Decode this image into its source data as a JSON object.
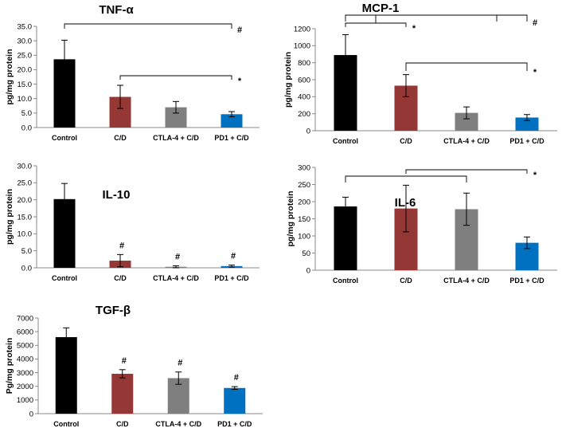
{
  "chart_data": [
    {
      "type": "bar",
      "title": "TNF-α",
      "ylabel": "pg/mg protein",
      "ylim": [
        0,
        35
      ],
      "yticks": [
        "0.0",
        "5.0",
        "10.0",
        "15.0",
        "20.0",
        "25.0",
        "30.0",
        "35.0"
      ],
      "categories": [
        "Control",
        "C/D",
        "CTLA-4 + C/D",
        "PD1 + C/D"
      ],
      "values": [
        23.6,
        10.6,
        7.0,
        4.6
      ],
      "errors": [
        6.6,
        4.0,
        2.0,
        0.9
      ],
      "colors": [
        "#000000",
        "#953735",
        "#7f7f7f",
        "#0070c0"
      ],
      "brackets": [
        {
          "from": 0,
          "to": 3,
          "label": "#"
        },
        {
          "from": 1,
          "to": 3,
          "label": "*"
        }
      ],
      "bar_labels": []
    },
    {
      "type": "bar",
      "title": "MCP-1",
      "ylabel": "pg/mg protein",
      "ylim": [
        0,
        1200
      ],
      "yticks": [
        "0",
        "200",
        "400",
        "600",
        "800",
        "1000",
        "1200"
      ],
      "categories": [
        "Control",
        "C/D",
        "CTLA-4 + C/D",
        "PD1 + C/D"
      ],
      "values": [
        890,
        530,
        210,
        155
      ],
      "errors": [
        240,
        130,
        70,
        35
      ],
      "colors": [
        "#000000",
        "#953735",
        "#7f7f7f",
        "#0070c0"
      ],
      "brackets": [
        {
          "from": 0,
          "to": 1,
          "label": "*"
        },
        {
          "from": 0,
          "to": 3,
          "label": "#"
        },
        {
          "from": 1,
          "to": 3,
          "label": "*"
        }
      ],
      "bar_labels": []
    },
    {
      "type": "bar",
      "title": "IL-10",
      "ylabel": "pg/mg protein",
      "ylim": [
        0,
        30
      ],
      "yticks": [
        "0.0",
        "5.0",
        "10.0",
        "15.0",
        "20.0",
        "25.0",
        "30.0"
      ],
      "categories": [
        "Control",
        "C/D",
        "CTLA-4 + C/D",
        "PD1 + C/D"
      ],
      "values": [
        20.2,
        2.1,
        0.3,
        0.5
      ],
      "errors": [
        4.6,
        1.8,
        0.3,
        0.3
      ],
      "colors": [
        "#000000",
        "#953735",
        "#7f7f7f",
        "#0070c0"
      ],
      "brackets": [],
      "bar_labels": [
        "",
        "#",
        "#",
        "#"
      ]
    },
    {
      "type": "bar",
      "title": "IL-6",
      "ylabel": "pg/mg protein",
      "ylim": [
        0,
        300
      ],
      "yticks": [
        "0",
        "50",
        "100",
        "150",
        "200",
        "250",
        "300"
      ],
      "categories": [
        "Control",
        "C/D",
        "CTLA-4 + C/D",
        "PD1 + C/D"
      ],
      "values": [
        186,
        180,
        178,
        80
      ],
      "errors": [
        27,
        68,
        47,
        17
      ],
      "colors": [
        "#000000",
        "#953735",
        "#7f7f7f",
        "#0070c0"
      ],
      "brackets": [
        {
          "from": 0,
          "to": 2,
          "label": ""
        },
        {
          "from": 1,
          "to": 3,
          "label": "*"
        }
      ],
      "bar_labels": []
    },
    {
      "type": "bar",
      "title": "TGF-β",
      "ylabel": "Pg/mg protein",
      "ylim": [
        0,
        7000
      ],
      "yticks": [
        "0",
        "1000",
        "2000",
        "3000",
        "4000",
        "5000",
        "6000",
        "7000"
      ],
      "categories": [
        "Control",
        "C/D",
        "CTLA-4 + C/D",
        "PD1 + C/D"
      ],
      "values": [
        5600,
        2920,
        2600,
        1880
      ],
      "errors": [
        680,
        300,
        450,
        100
      ],
      "colors": [
        "#000000",
        "#953735",
        "#7f7f7f",
        "#0070c0"
      ],
      "brackets": [],
      "bar_labels": [
        "",
        "#",
        "#",
        "#"
      ]
    }
  ]
}
